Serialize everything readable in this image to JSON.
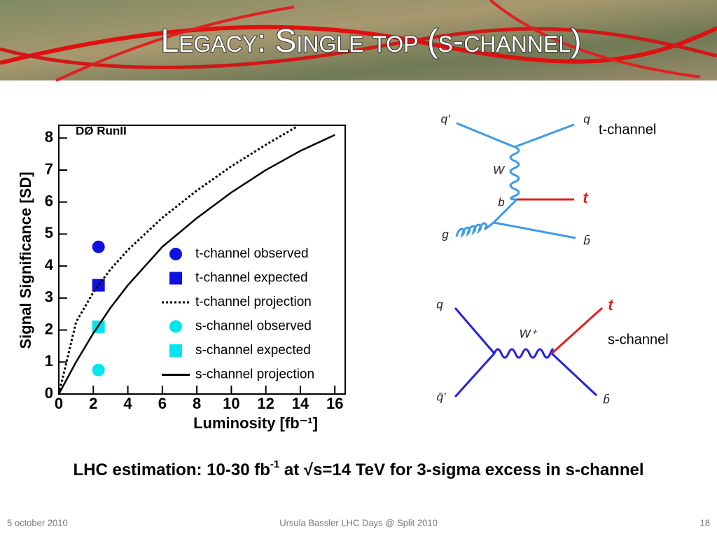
{
  "header": {
    "title": "Legacy: Single top (s-channel)"
  },
  "chart_data": {
    "type": "line",
    "annotation": "DØ RunII",
    "x_label": "Luminosity [fb⁻¹]",
    "y_label": "Signal Significance [SD]",
    "xlim": [
      0,
      16.6
    ],
    "ylim": [
      0,
      8.4
    ],
    "xticks": [
      0,
      2,
      4,
      6,
      8,
      10,
      12,
      14,
      16
    ],
    "yticks": [
      0,
      1,
      2,
      3,
      4,
      5,
      6,
      7,
      8
    ],
    "series": [
      {
        "name": "t-channel observed",
        "color": "#1010e0",
        "style": "circle",
        "x": [
          2.3
        ],
        "values": [
          4.6
        ]
      },
      {
        "name": "t-channel expected",
        "color": "#1010e0",
        "style": "square",
        "x": [
          2.3
        ],
        "values": [
          3.4
        ]
      },
      {
        "name": "t-channel projection",
        "color": "#000000",
        "style": "dotted",
        "x": [
          0,
          1,
          2,
          3,
          4,
          6,
          8,
          10,
          12,
          13.8
        ],
        "values": [
          0,
          2.25,
          3.18,
          3.9,
          4.5,
          5.51,
          6.36,
          7.12,
          7.79,
          8.36
        ]
      },
      {
        "name": "s-channel observed",
        "color": "#00e5ee",
        "style": "circle",
        "x": [
          2.3
        ],
        "values": [
          0.75
        ]
      },
      {
        "name": "s-channel expected",
        "color": "#00e5ee",
        "style": "square",
        "x": [
          2.3
        ],
        "values": [
          2.1
        ]
      },
      {
        "name": "s-channel projection",
        "color": "#000000",
        "style": "solid",
        "x": [
          0,
          1,
          2,
          3,
          4,
          6,
          8,
          10,
          12,
          14,
          16
        ],
        "values": [
          0,
          1.0,
          1.9,
          2.7,
          3.4,
          4.6,
          5.5,
          6.3,
          7.0,
          7.6,
          8.1
        ]
      }
    ]
  },
  "diagrams": {
    "t_channel": {
      "caption": "t-channel",
      "labels": [
        "q'",
        "q",
        "W",
        "b",
        "t",
        "g",
        "b̄"
      ]
    },
    "s_channel": {
      "caption": "s-channel",
      "labels": [
        "q",
        "t",
        "W⁺",
        "q̄'",
        "b̄"
      ]
    }
  },
  "note": [
    "LHC estimation: 10-30 fb",
    "-1",
    " at √s=14 TeV for 3-sigma excess in s-channel"
  ],
  "footer": {
    "date": "5 october 2010",
    "event": "Ursula Bassler LHC Days @ Split 2010",
    "page": "18"
  }
}
